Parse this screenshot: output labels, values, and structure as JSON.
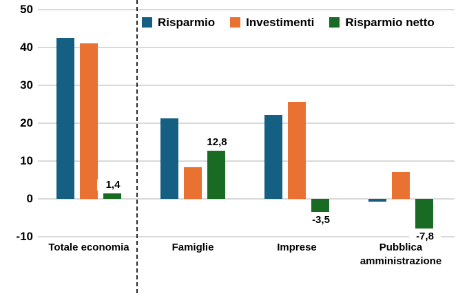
{
  "chart_data": {
    "type": "bar",
    "title": "",
    "xlabel": "",
    "ylabel": "",
    "categories": [
      "Totale economia",
      "Famiglie",
      "Imprese",
      "Pubblica amministrazione"
    ],
    "series": [
      {
        "name": "Risparmio",
        "color": "#156082",
        "values": [
          42.5,
          21.2,
          22.1,
          -0.8
        ]
      },
      {
        "name": "Investimenti",
        "color": "#E97132",
        "values": [
          41.1,
          8.4,
          25.6,
          7.1
        ]
      },
      {
        "name": "Risparmio netto",
        "color": "#196B24",
        "values": [
          1.4,
          12.8,
          -3.5,
          -7.8
        ],
        "data_labels": [
          "1,4",
          "12,8",
          "-3,5",
          "-7,8"
        ]
      }
    ],
    "ylim": [
      -10,
      50
    ],
    "yticks": [
      50,
      40,
      30,
      20,
      10,
      0,
      -10
    ],
    "grid": true,
    "legend_position": "top",
    "separator_after_category_index": 0,
    "colors": {
      "gridline": "#D9D9D9",
      "separator": "#262626",
      "text": "#000000",
      "background": "#FFFFFF"
    }
  }
}
